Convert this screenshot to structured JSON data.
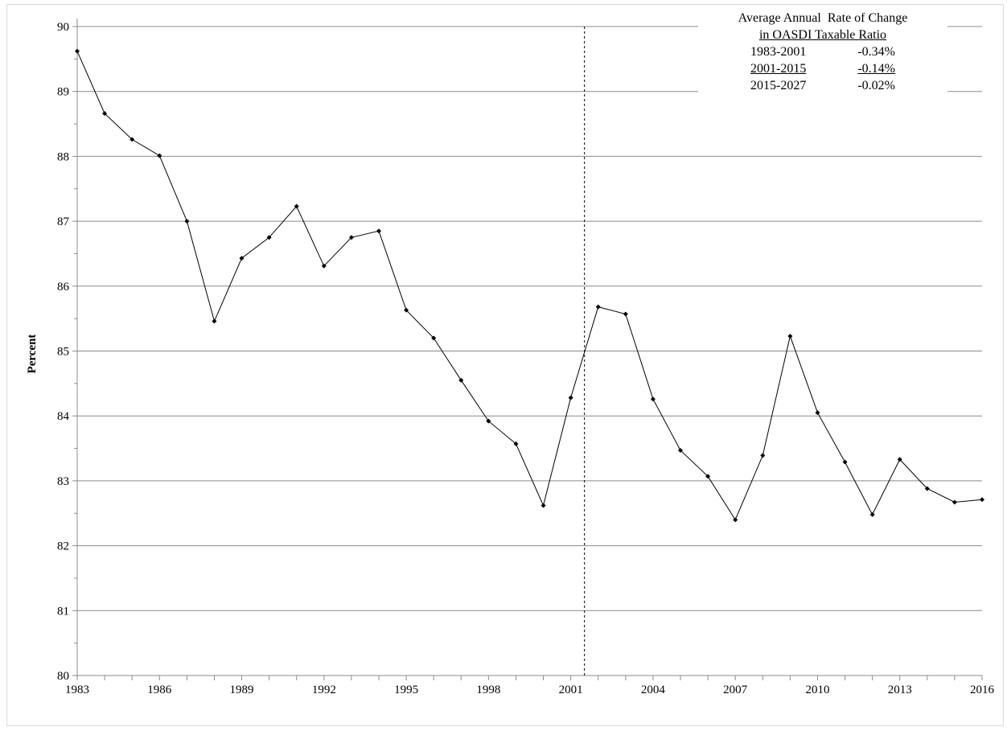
{
  "chart_data": {
    "type": "line",
    "xlabel": "",
    "ylabel": "Percent",
    "ylim": [
      80,
      90
    ],
    "xlim": [
      1983,
      2016
    ],
    "y_ticks": [
      "80",
      "81",
      "82",
      "83",
      "84",
      "85",
      "86",
      "87",
      "88",
      "89",
      "90"
    ],
    "x_ticks": [
      "1983",
      "1986",
      "1989",
      "1992",
      "1995",
      "1998",
      "2001",
      "2004",
      "2007",
      "2010",
      "2013",
      "2016"
    ],
    "grid": "horizontal",
    "reference_line": {
      "x": 2001.5,
      "style": "dashed"
    },
    "series": [
      {
        "x": [
          1983,
          1984,
          1985,
          1986,
          1987,
          1988,
          1989,
          1990,
          1991,
          1992,
          1993,
          1994,
          1995,
          1996,
          1997,
          1998,
          1999,
          2000,
          2001,
          2002,
          2003,
          2004,
          2005,
          2006,
          2007,
          2008,
          2009,
          2010,
          2011,
          2012,
          2013,
          2014,
          2015,
          2016
        ],
        "values": [
          89.62,
          88.66,
          88.26,
          88.01,
          87.0,
          85.46,
          86.43,
          86.75,
          87.23,
          86.31,
          86.75,
          86.85,
          85.63,
          85.2,
          84.55,
          83.92,
          83.57,
          82.62,
          84.28,
          85.68,
          85.57,
          84.26,
          83.47,
          83.07,
          82.4,
          83.39,
          85.23,
          84.05,
          83.29,
          82.48,
          83.33,
          82.88,
          82.67,
          82.71
        ],
        "color": "#000000"
      }
    ],
    "annotation": {
      "heading_line1": "Average Annual  Rate of Change",
      "heading_line2": "in OASDI Taxable Ratio",
      "rows": [
        {
          "period": "1983-2001",
          "rate": "-0.34%"
        },
        {
          "period": "2001-2015",
          "rate": "-0.14%"
        },
        {
          "period": "2015-2027",
          "rate": "-0.02%"
        }
      ]
    }
  }
}
